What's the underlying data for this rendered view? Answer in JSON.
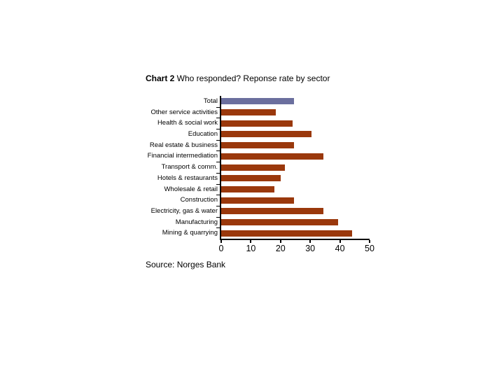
{
  "title": {
    "prefix": "Chart 2",
    "text": " Who responded? Reponse rate by sector"
  },
  "source": "Source: Norges Bank",
  "chart_data": {
    "type": "bar",
    "orientation": "horizontal",
    "title": "Chart 2 Who responded? Reponse rate by sector",
    "categories": [
      "Total",
      "Other service activities",
      "Health & social work",
      "Education",
      "Real estate & business",
      "Financial intermediation",
      "Transport & comm.",
      "Hotels & restaurants",
      "Wholesale & retail",
      "Construction",
      "Electricity, gas & water",
      "Manufacturing",
      "Mining & quarrying"
    ],
    "values": [
      24.5,
      18.5,
      24,
      30.5,
      24.5,
      34.5,
      21.5,
      20,
      18,
      24.5,
      34.5,
      39.5,
      44
    ],
    "xlabel": "",
    "ylabel": "",
    "xlim": [
      0,
      50
    ],
    "xticks": [
      0,
      10,
      20,
      30,
      40,
      50
    ],
    "grid": false,
    "legend": false,
    "bar_color": "#9a380c",
    "total_bar_color": "#6b6f9e",
    "axis_color": "#000000",
    "source": "Source: Norges Bank"
  }
}
